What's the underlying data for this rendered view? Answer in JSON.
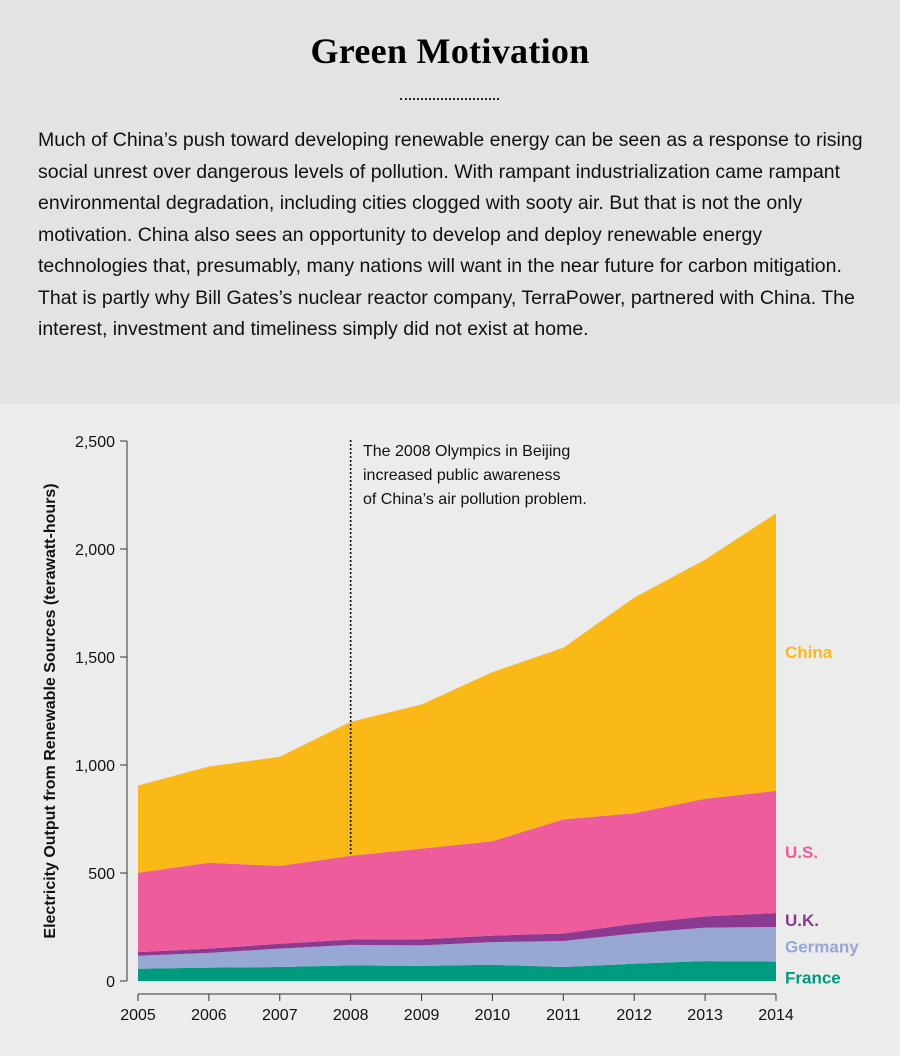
{
  "title": "Green Motivation",
  "intro": "Much of China’s push toward developing renewable energy can be seen as a response to rising social unrest over dangerous levels of pollution. With rampant industrialization came rampant environmental degradation, including cities clogged with sooty air. But that is not the only motivation. China also sees an opportunity to develop and deploy renewable energy technologies that, presumably, many nations will want in the near future for carbon mitigation. That is partly why Bill Gates’s nuclear reactor company, TerraPower, partnered with China. The interest, investment and timeliness simply did not exist at home.",
  "chart_data": {
    "type": "area",
    "stacked": true,
    "ylabel": "Electricity Output from Renewable Sources (terawatt-hours)",
    "xlabel": "",
    "x": [
      2005,
      2006,
      2007,
      2008,
      2009,
      2010,
      2011,
      2012,
      2013,
      2014
    ],
    "ylim": [
      0,
      2500
    ],
    "yticks": [
      0,
      500,
      1000,
      1500,
      2000,
      2500
    ],
    "ytick_labels": [
      "0",
      "500",
      "1,000",
      "1,500",
      "2,000",
      "2,500"
    ],
    "grid": false,
    "legend": "direct labels at right",
    "series": [
      {
        "name": "France",
        "color": "#009a7e",
        "values": [
          57,
          62,
          65,
          72,
          70,
          75,
          65,
          80,
          92,
          90
        ]
      },
      {
        "name": "Germany",
        "color": "#98a8d4",
        "values": [
          60,
          68,
          85,
          95,
          95,
          105,
          120,
          140,
          155,
          160
        ]
      },
      {
        "name": "U.K.",
        "color": "#8c3a91",
        "values": [
          17,
          20,
          22,
          25,
          28,
          30,
          35,
          45,
          52,
          65
        ]
      },
      {
        "name": "U.S.",
        "color": "#ef5c9c",
        "values": [
          367,
          397,
          361,
          388,
          420,
          437,
          528,
          512,
          545,
          565
        ]
      },
      {
        "name": "China",
        "color": "#fbb918",
        "values": [
          404,
          446,
          505,
          620,
          667,
          783,
          795,
          998,
          1107,
          1285
        ]
      }
    ],
    "annotation": {
      "x": 2008,
      "text_lines": [
        "The 2008 Olympics in Beijing",
        "increased public awareness",
        "of China’s air pollution problem."
      ]
    }
  }
}
